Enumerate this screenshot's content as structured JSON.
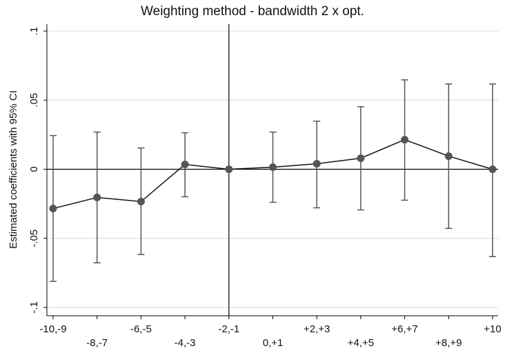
{
  "chart_data": {
    "type": "errorbar",
    "title": "Weighting method - bandwidth 2 x opt.",
    "y_label": "Estimated coefficients with 95% CI",
    "categories": [
      "-10,-9",
      "-8,-7",
      "-6,-5",
      "-4,-3",
      "-2,-1",
      "0,+1",
      "+2,+3",
      "+4,+5",
      "+6,+7",
      "+8,+9",
      "+10"
    ],
    "values": [
      -0.0284,
      -0.0204,
      -0.0234,
      0.0035,
      0,
      0.0015,
      0.004,
      0.008,
      0.0214,
      0.0095,
      0
    ],
    "ci_lower": [
      -0.0811,
      -0.0677,
      -0.0617,
      -0.0199,
      null,
      -0.0239,
      -0.0279,
      -0.0294,
      -0.0224,
      -0.0428,
      -0.0632
    ],
    "ci_upper": [
      0.0244,
      0.0269,
      0.0154,
      0.0264,
      null,
      0.0269,
      0.0348,
      0.0453,
      0.0647,
      0.0617,
      0.0617
    ],
    "color": "#555555",
    "ylim": [
      -0.106,
      0.105
    ],
    "yticks": [
      {
        "value": -0.1,
        "label": "-.1"
      },
      {
        "value": -0.05,
        "label": "-.05"
      },
      0,
      {
        "value": 0.05,
        "label": ".05"
      },
      {
        "value": 0.1,
        "label": ".1"
      }
    ],
    "grid": true,
    "hline": 0,
    "vline": "-2,-1"
  }
}
